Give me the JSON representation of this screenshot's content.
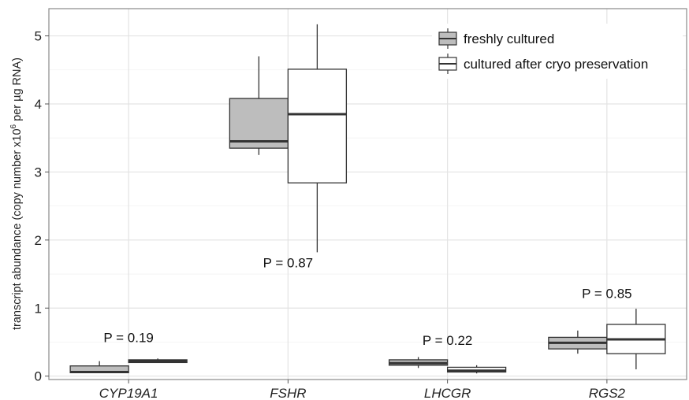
{
  "chart_data": {
    "type": "boxplot",
    "ylabel_prefix": "transcript abundance (copy number x10",
    "ylabel_sup": "6",
    "ylabel_suffix": " per µg RNA)",
    "xlabel": "",
    "ylim": [
      -0.05,
      5.4
    ],
    "yticks": [
      0,
      1,
      2,
      3,
      4,
      5
    ],
    "grid": true,
    "legend_position": "top-right",
    "categories": [
      "CYP19A1",
      "FSHR",
      "LHCGR",
      "RGS2"
    ],
    "series": [
      {
        "name": "freshly cultured",
        "fill": "#bdbdbd",
        "boxes": [
          {
            "min": 0.05,
            "q1": 0.05,
            "median": 0.06,
            "q3": 0.15,
            "max": 0.22
          },
          {
            "min": 3.25,
            "q1": 3.35,
            "median": 3.45,
            "q3": 4.08,
            "max": 4.7
          },
          {
            "min": 0.12,
            "q1": 0.16,
            "median": 0.19,
            "q3": 0.24,
            "max": 0.28
          },
          {
            "min": 0.33,
            "q1": 0.4,
            "median": 0.49,
            "q3": 0.57,
            "max": 0.67
          }
        ]
      },
      {
        "name": "cultured after cryo preservation",
        "fill": "#ffffff",
        "boxes": [
          {
            "min": 0.2,
            "q1": 0.2,
            "median": 0.22,
            "q3": 0.24,
            "max": 0.26
          },
          {
            "min": 1.82,
            "q1": 2.84,
            "median": 3.85,
            "q3": 4.51,
            "max": 5.17
          },
          {
            "min": 0.04,
            "q1": 0.06,
            "median": 0.08,
            "q3": 0.13,
            "max": 0.16
          },
          {
            "min": 0.1,
            "q1": 0.33,
            "median": 0.54,
            "q3": 0.76,
            "max": 0.99
          }
        ]
      }
    ],
    "annotations": [
      {
        "category": "CYP19A1",
        "text": "P = 0.19",
        "y": 0.5
      },
      {
        "category": "FSHR",
        "text": "P = 0.87",
        "y": 1.6
      },
      {
        "category": "LHCGR",
        "text": "P = 0.22",
        "y": 0.46
      },
      {
        "category": "RGS2",
        "text": "P = 0.85",
        "y": 1.15
      }
    ]
  }
}
